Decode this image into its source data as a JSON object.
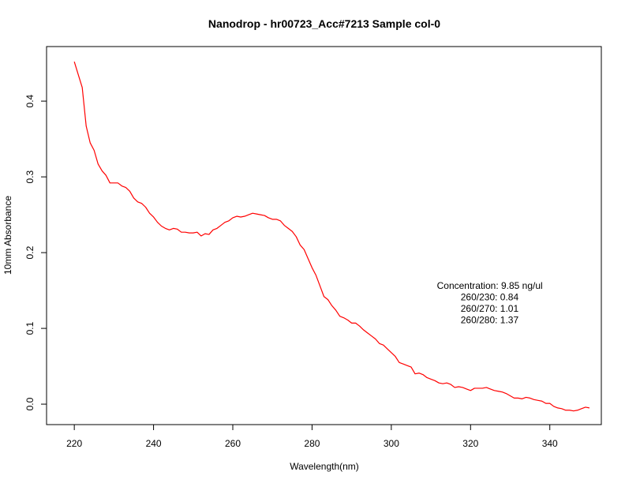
{
  "chart_data": {
    "type": "line",
    "title": "Nanodrop - hr00723_Acc#7213  Sample col-0",
    "xlabel": "Wavelength(nm)",
    "ylabel": "10mm Absorbance",
    "xlim": [
      213,
      353
    ],
    "ylim": [
      -0.027,
      0.472
    ],
    "x_ticks": [
      220,
      240,
      260,
      280,
      300,
      320,
      340
    ],
    "x_tick_labels": [
      "220",
      "240",
      "260",
      "280",
      "300",
      "320",
      "340"
    ],
    "y_ticks": [
      0.0,
      0.1,
      0.2,
      0.3,
      0.4
    ],
    "y_tick_labels": [
      "0.0",
      "0.1",
      "0.2",
      "0.3",
      "0.4"
    ],
    "grid": false,
    "series": [
      {
        "color": "#ff0000",
        "x": [
          220,
          221,
          222,
          223,
          224,
          225,
          226,
          227,
          228,
          229,
          230,
          231,
          232,
          233,
          234,
          235,
          236,
          237,
          238,
          239,
          240,
          241,
          242,
          243,
          244,
          245,
          246,
          247,
          248,
          249,
          250,
          251,
          252,
          253,
          254,
          255,
          256,
          257,
          258,
          259,
          260,
          261,
          262,
          263,
          264,
          265,
          266,
          267,
          268,
          269,
          270,
          271,
          272,
          273,
          274,
          275,
          276,
          277,
          278,
          279,
          280,
          281,
          282,
          283,
          284,
          285,
          286,
          287,
          288,
          289,
          290,
          291,
          292,
          293,
          294,
          295,
          296,
          297,
          298,
          299,
          300,
          301,
          302,
          303,
          304,
          305,
          306,
          307,
          308,
          309,
          310,
          311,
          312,
          313,
          314,
          315,
          316,
          317,
          318,
          319,
          320,
          321,
          322,
          323,
          324,
          325,
          326,
          327,
          328,
          329,
          330,
          331,
          332,
          333,
          334,
          335,
          336,
          337,
          338,
          339,
          340,
          341,
          342,
          343,
          344,
          345,
          346,
          347,
          348,
          349,
          350
        ],
        "y": [
          0.452,
          0.435,
          0.418,
          0.367,
          0.345,
          0.335,
          0.317,
          0.308,
          0.302,
          0.292,
          0.292,
          0.292,
          0.288,
          0.286,
          0.281,
          0.272,
          0.267,
          0.265,
          0.26,
          0.252,
          0.247,
          0.24,
          0.235,
          0.232,
          0.23,
          0.232,
          0.231,
          0.227,
          0.227,
          0.226,
          0.226,
          0.227,
          0.222,
          0.225,
          0.224,
          0.23,
          0.232,
          0.236,
          0.24,
          0.242,
          0.246,
          0.248,
          0.247,
          0.248,
          0.25,
          0.252,
          0.251,
          0.25,
          0.249,
          0.246,
          0.244,
          0.244,
          0.242,
          0.236,
          0.232,
          0.228,
          0.221,
          0.21,
          0.204,
          0.192,
          0.18,
          0.17,
          0.156,
          0.142,
          0.138,
          0.13,
          0.124,
          0.116,
          0.114,
          0.111,
          0.107,
          0.107,
          0.103,
          0.098,
          0.094,
          0.09,
          0.086,
          0.08,
          0.078,
          0.073,
          0.068,
          0.063,
          0.055,
          0.053,
          0.051,
          0.049,
          0.04,
          0.041,
          0.039,
          0.035,
          0.033,
          0.031,
          0.028,
          0.027,
          0.028,
          0.026,
          0.022,
          0.023,
          0.022,
          0.02,
          0.018,
          0.021,
          0.021,
          0.021,
          0.022,
          0.02,
          0.018,
          0.017,
          0.016,
          0.014,
          0.011,
          0.008,
          0.008,
          0.007,
          0.009,
          0.008,
          0.006,
          0.005,
          0.004,
          0.001,
          0.001,
          -0.003,
          -0.005,
          -0.006,
          -0.008,
          -0.008,
          -0.009,
          -0.008,
          -0.006,
          -0.004,
          -0.005
        ]
      }
    ],
    "annotations": [
      {
        "text": "Concentration: 9.85 ng/ul",
        "x": 311.5,
        "y": 0.152
      },
      {
        "text": "260/230: 0.84",
        "x": 317.5,
        "y": 0.137
      },
      {
        "text": "260/270: 1.01",
        "x": 317.5,
        "y": 0.122
      },
      {
        "text": "260/280: 1.37",
        "x": 317.5,
        "y": 0.107
      }
    ]
  }
}
